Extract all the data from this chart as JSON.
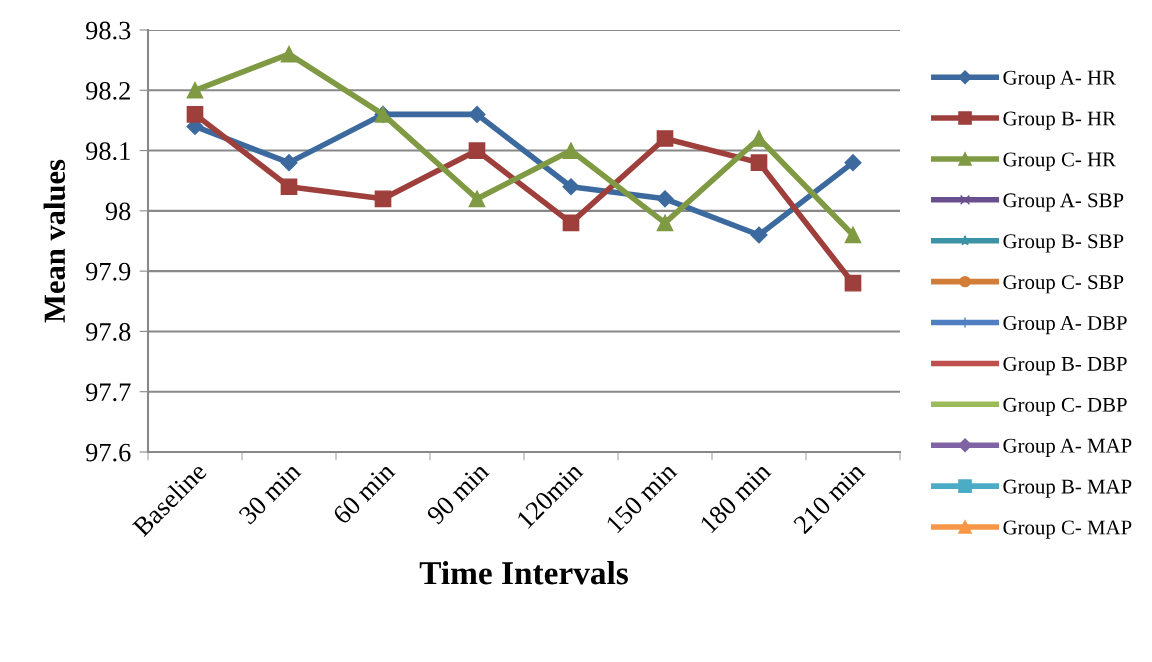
{
  "chart_data": {
    "type": "line",
    "xlabel": "Time Intervals",
    "ylabel": "Mean values",
    "categories": [
      "Baseline",
      "30 min",
      "60 min",
      "90 min",
      "120min",
      "150 min",
      "180 min",
      "210 min"
    ],
    "ylim": [
      97.6,
      98.3
    ],
    "yticks": [
      97.6,
      97.7,
      97.8,
      97.9,
      {
        "value": 98.0,
        "label": "98"
      },
      98.1,
      98.2,
      98.3
    ],
    "grid": "y",
    "legend": "right",
    "line_style": "solid",
    "series": [
      {
        "name": "Group A- HR",
        "color": "#3d6a9e",
        "marker": "diamond",
        "values": [
          98.14,
          98.08,
          98.16,
          98.16,
          98.04,
          98.02,
          97.96,
          98.08
        ]
      },
      {
        "name": "Group B- HR",
        "color": "#9e3f3c",
        "marker": "square",
        "values": [
          98.16,
          98.04,
          98.02,
          98.1,
          97.98,
          98.12,
          98.08,
          97.88
        ]
      },
      {
        "name": "Group C- HR",
        "color": "#7f9a43",
        "marker": "triangle",
        "values": [
          98.2,
          98.26,
          98.16,
          98.02,
          98.1,
          97.98,
          98.12,
          97.96
        ]
      },
      {
        "name": "Group A- SBP",
        "color": "#6a4f8e",
        "marker": "cross",
        "values": [
          null,
          null,
          null,
          null,
          null,
          null,
          null,
          null
        ]
      },
      {
        "name": "Group B- SBP",
        "color": "#3c93a6",
        "marker": "star",
        "values": [
          null,
          null,
          null,
          null,
          null,
          null,
          null,
          null
        ]
      },
      {
        "name": "Group C- SBP",
        "color": "#d27d38",
        "marker": "circle",
        "values": [
          null,
          null,
          null,
          null,
          null,
          null,
          null,
          null
        ]
      },
      {
        "name": "Group A- DBP",
        "color": "#4f7fc0",
        "marker": "plus",
        "values": [
          null,
          null,
          null,
          null,
          null,
          null,
          null,
          null
        ]
      },
      {
        "name": "Group B- DBP",
        "color": "#c0504d",
        "marker": "none",
        "values": [
          null,
          null,
          null,
          null,
          null,
          null,
          null,
          null
        ]
      },
      {
        "name": "Group C- DBP",
        "color": "#9bbb59",
        "marker": "none",
        "values": [
          null,
          null,
          null,
          null,
          null,
          null,
          null,
          null
        ]
      },
      {
        "name": "Group A- MAP",
        "color": "#7f63a4",
        "marker": "diamond",
        "values": [
          null,
          null,
          null,
          null,
          null,
          null,
          null,
          null
        ]
      },
      {
        "name": "Group B- MAP",
        "color": "#4bacc6",
        "marker": "square",
        "values": [
          null,
          null,
          null,
          null,
          null,
          null,
          null,
          null
        ]
      },
      {
        "name": "Group C- MAP",
        "color": "#f79646",
        "marker": "triangle",
        "values": [
          null,
          null,
          null,
          null,
          null,
          null,
          null,
          null
        ]
      }
    ]
  }
}
